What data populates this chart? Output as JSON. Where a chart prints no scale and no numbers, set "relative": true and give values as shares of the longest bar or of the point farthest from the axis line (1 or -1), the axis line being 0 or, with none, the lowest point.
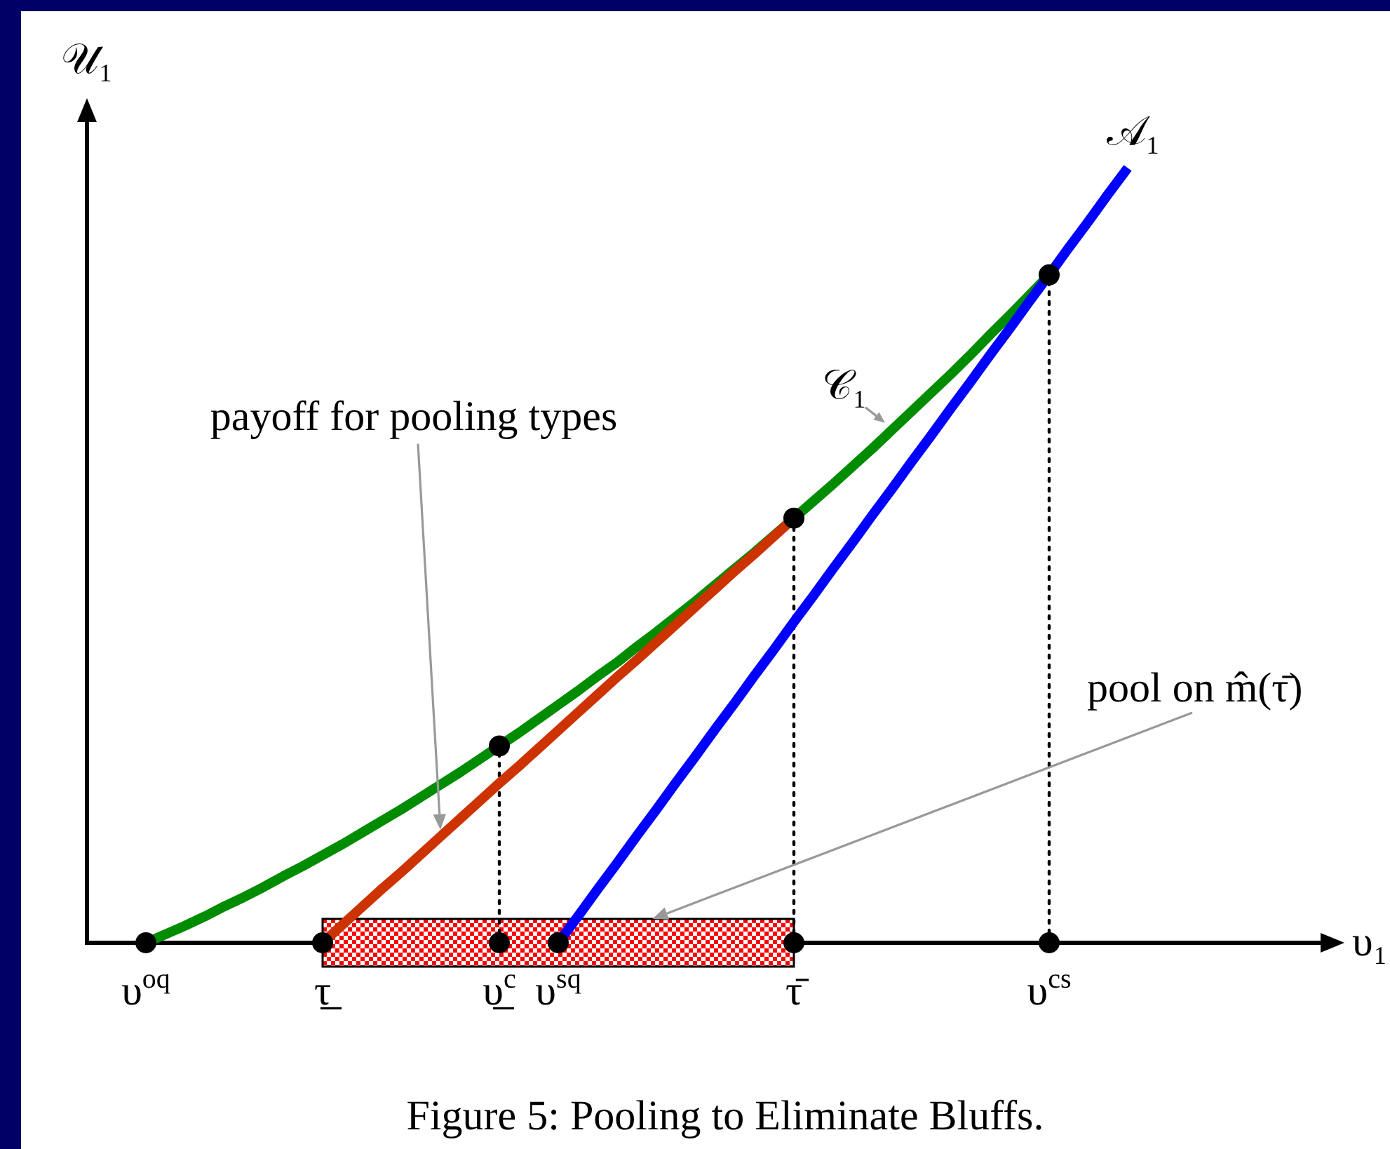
{
  "chart_data": {
    "type": "line",
    "relative": true,
    "xlabel": "υ₁",
    "ylabel": "𝒰₁",
    "tick_labels": "x",
    "marker": "none",
    "categories": [
      null,
      null,
      null,
      "υ$^{oq}$",
      null,
      null,
      null,
      null,
      null,
      null,
      null,
      null,
      "τ̲",
      null,
      null,
      null,
      null,
      null,
      null,
      null,
      null,
      "υ̲$^{c}$",
      null,
      null,
      "υ$^{sq}$",
      null,
      null,
      null,
      null,
      null,
      null,
      null,
      null,
      null,
      null,
      null,
      "τ̄",
      null,
      null,
      null,
      null,
      null,
      null,
      null,
      null,
      null,
      null,
      null,
      null,
      "υ$^{cs}$",
      null,
      null,
      null,
      null,
      null,
      null,
      null,
      null,
      null,
      null,
      null,
      null,
      null,
      null,
      null
    ],
    "series": [
      {
        "name": "𝒞₁",
        "color": "#008c00",
        "values": [
          null,
          null,
          null,
          0,
          0.011,
          0.022,
          0.034,
          0.047,
          0.059,
          0.072,
          0.086,
          0.099,
          0.113,
          0.127,
          0.142,
          0.157,
          0.172,
          0.188,
          0.204,
          0.22,
          0.237,
          0.254,
          0.271,
          0.289,
          0.307,
          0.325,
          0.344,
          0.362,
          0.382,
          0.401,
          0.421,
          0.441,
          0.462,
          0.483,
          0.504,
          0.526,
          0.548,
          0.57,
          0.592,
          0.615,
          0.638,
          0.662,
          0.686,
          0.71,
          0.734,
          0.759,
          0.785,
          0.81,
          0.836,
          0.862,
          null,
          null,
          null,
          null,
          null,
          null,
          null,
          null,
          null,
          null,
          null,
          null,
          null,
          null,
          null
        ]
      },
      {
        "color": "#cc3300",
        "values": [
          null,
          null,
          null,
          null,
          null,
          null,
          null,
          null,
          null,
          null,
          null,
          null,
          0,
          0.023,
          0.046,
          0.069,
          0.091,
          0.114,
          0.137,
          0.16,
          0.183,
          0.206,
          0.228,
          0.251,
          0.274,
          0.297,
          0.32,
          0.343,
          0.365,
          0.388,
          0.411,
          0.434,
          0.457,
          0.48,
          0.502,
          0.525,
          0.548,
          null,
          null,
          null,
          null,
          null,
          null,
          null,
          null,
          null,
          null,
          null,
          null,
          null,
          null,
          null,
          null,
          null,
          null,
          null,
          null,
          null,
          null,
          null,
          null,
          null,
          null,
          null,
          null
        ]
      },
      {
        "name": "𝒜₁",
        "color": "#0000ff",
        "values": [
          null,
          null,
          null,
          null,
          null,
          null,
          null,
          null,
          null,
          null,
          null,
          null,
          null,
          null,
          null,
          null,
          null,
          null,
          null,
          null,
          null,
          null,
          null,
          null,
          0,
          0.034,
          0.069,
          0.103,
          0.138,
          0.172,
          0.207,
          0.241,
          0.276,
          0.31,
          0.345,
          0.379,
          0.414,
          0.448,
          0.483,
          0.517,
          0.552,
          0.586,
          0.621,
          0.655,
          0.69,
          0.724,
          0.759,
          0.793,
          0.828,
          0.862,
          0.897,
          0.931,
          0.966,
          1,
          null,
          null,
          null,
          null,
          null,
          null,
          null,
          null,
          null,
          null,
          null
        ]
      },
      {
        "type": "lollipop",
        "marker": "circle",
        "line_style": "dotted",
        "color": "#000000",
        "values": [
          null,
          null,
          null,
          null,
          null,
          null,
          null,
          null,
          null,
          null,
          null,
          null,
          null,
          null,
          null,
          null,
          null,
          null,
          null,
          null,
          null,
          0.254,
          null,
          null,
          null,
          null,
          null,
          null,
          null,
          null,
          null,
          null,
          null,
          null,
          null,
          null,
          0.548,
          null,
          null,
          null,
          null,
          null,
          null,
          null,
          null,
          null,
          null,
          null,
          null,
          0.862,
          null,
          null,
          null,
          null,
          null,
          null,
          null,
          null,
          null,
          null,
          null,
          null,
          null,
          null,
          null
        ]
      },
      {
        "type": "scatter",
        "marker": "circle",
        "color": "#000000",
        "values": [
          null,
          null,
          null,
          0,
          null,
          null,
          null,
          null,
          null,
          null,
          null,
          null,
          0,
          null,
          null,
          null,
          null,
          null,
          null,
          null,
          null,
          0,
          null,
          null,
          0,
          null,
          null,
          null,
          null,
          null,
          null,
          null,
          null,
          null,
          null,
          null,
          0,
          null,
          null,
          null,
          null,
          null,
          null,
          null,
          null,
          null,
          null,
          null,
          null,
          0,
          null,
          null,
          null,
          null,
          null,
          null,
          null,
          null,
          null,
          null,
          null,
          null,
          null,
          null,
          null
        ]
      }
    ],
    "annotations": [
      "payoff for pooling types",
      "pool on m̂(τ̄)",
      "Figure 5: Pooling to Eliminate Bluffs."
    ]
  }
}
